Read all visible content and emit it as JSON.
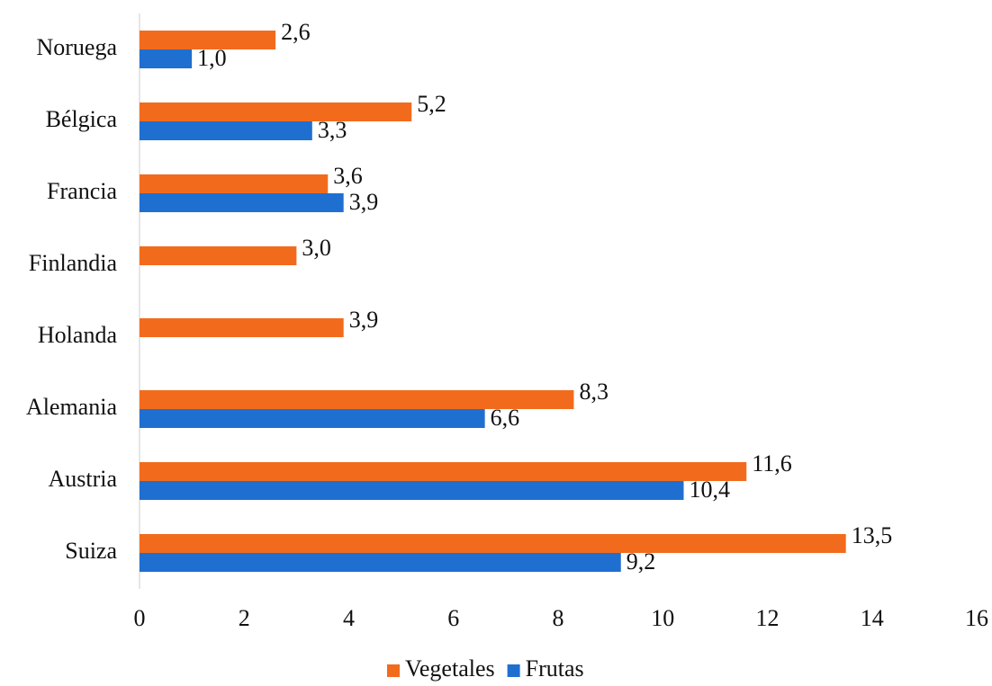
{
  "chart_data": {
    "type": "bar",
    "orientation": "horizontal",
    "categories": [
      "Noruega",
      "Bélgica",
      "Francia",
      "Finlandia",
      "Holanda",
      "Alemania",
      "Austria",
      "Suiza"
    ],
    "series": [
      {
        "name": "Vegetales",
        "color": "#f26b1d",
        "values": [
          2.6,
          5.2,
          3.6,
          3.0,
          3.9,
          8.3,
          11.6,
          13.5
        ],
        "value_labels": [
          "2,6",
          "5,2",
          "3,6",
          "3,0",
          "3,9",
          "8,3",
          "11,6",
          "13,5"
        ]
      },
      {
        "name": "Frutas",
        "color": "#1f6fd1",
        "values": [
          1.0,
          3.3,
          3.9,
          null,
          null,
          6.6,
          10.4,
          9.2
        ],
        "value_labels": [
          "1,0",
          "3,3",
          "3,9",
          null,
          null,
          "6,6",
          "10,4",
          "9,2"
        ]
      }
    ],
    "xlim": [
      0,
      16
    ],
    "xticks": [
      0,
      2,
      4,
      6,
      8,
      10,
      12,
      14,
      16
    ],
    "legend": "bottom"
  }
}
